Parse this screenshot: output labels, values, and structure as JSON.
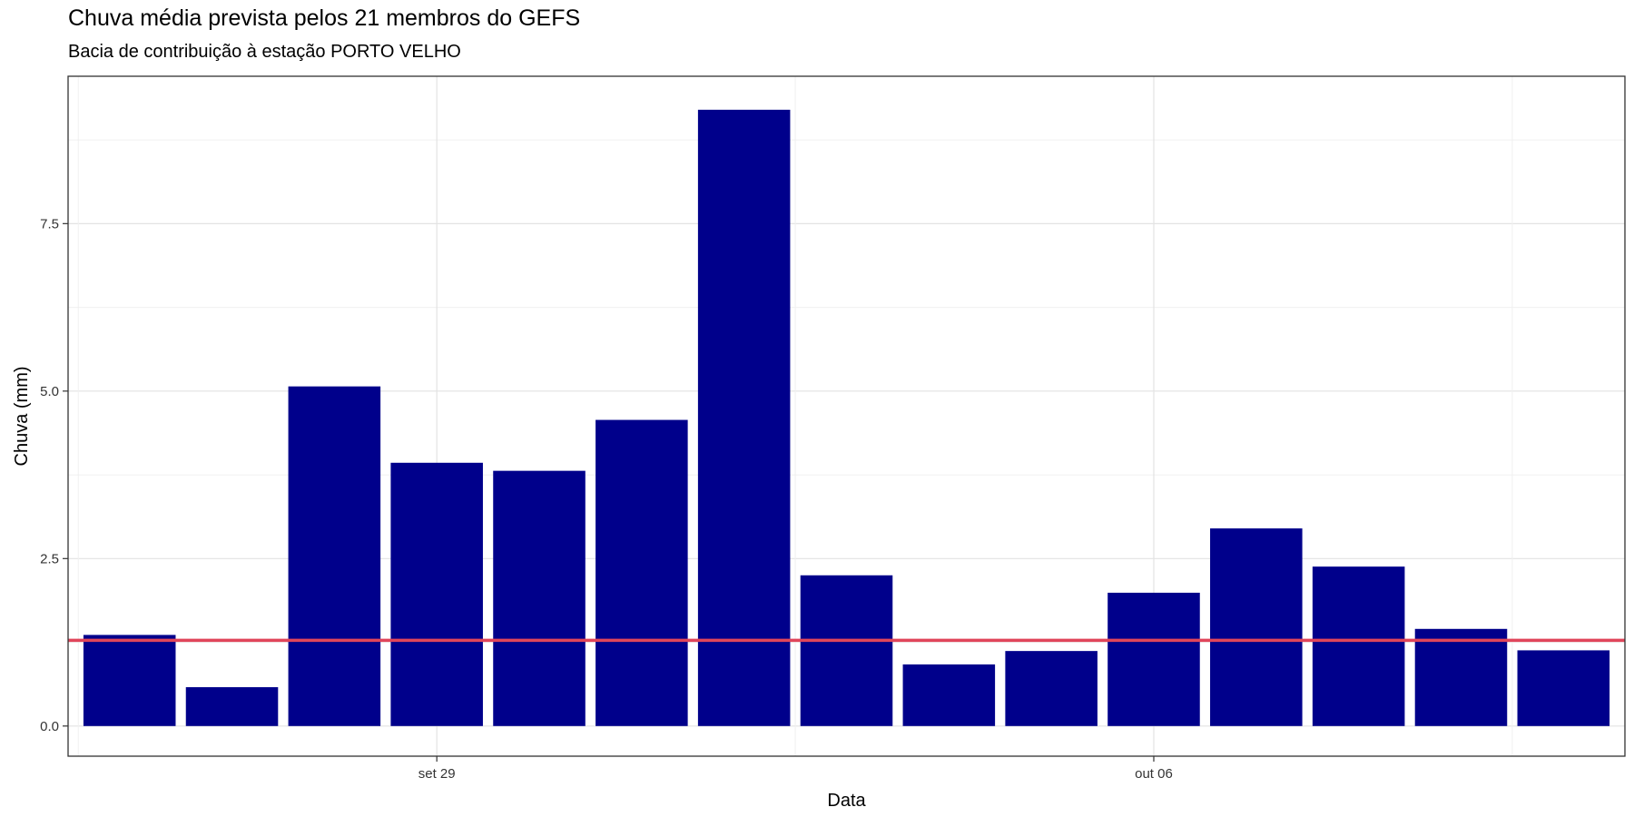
{
  "chart_data": {
    "type": "bar",
    "title": "Chuva média prevista pelos 21 membros do GEFS",
    "subtitle": "Bacia de contribuição à estação PORTO VELHO",
    "xlabel": "Data",
    "ylabel": "Chuva (mm)",
    "categories": [
      "2023-09-26",
      "2023-09-27",
      "2023-09-28",
      "2023-09-29",
      "2023-09-30",
      "2023-10-01",
      "2023-10-02",
      "2023-10-03",
      "2023-10-04",
      "2023-10-05",
      "2023-10-06",
      "2023-10-07",
      "2023-10-08",
      "2023-10-09",
      "2023-10-10"
    ],
    "values": [
      1.36,
      0.58,
      5.07,
      3.93,
      3.81,
      4.57,
      9.2,
      2.25,
      0.92,
      1.12,
      1.99,
      2.95,
      2.38,
      1.45,
      1.13
    ],
    "ylim": [
      -0.45,
      9.7
    ],
    "yticks": [
      0.0,
      2.5,
      5.0,
      7.5
    ],
    "ytick_labels": [
      "0.0",
      "2.5",
      "5.0",
      "7.5"
    ],
    "xticks": [
      "2023-09-29",
      "2023-10-06"
    ],
    "xtick_labels": [
      "set 29",
      "out 06"
    ],
    "reference_line": 1.28,
    "bar_color": "#00008B",
    "line_color": "#E0455A",
    "grid": true
  }
}
